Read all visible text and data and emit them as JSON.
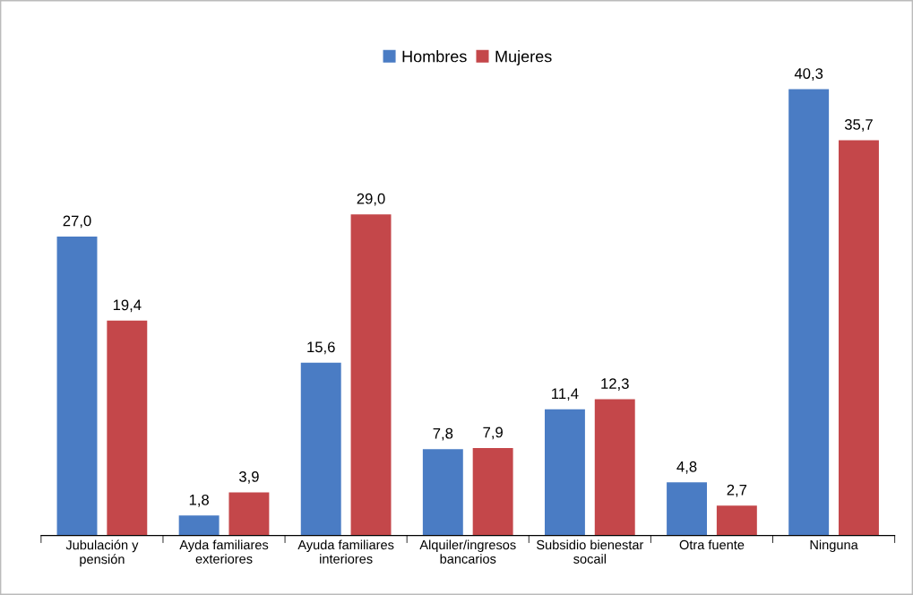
{
  "chart_data": {
    "type": "bar",
    "categories": [
      "Jubulación y\npensión",
      "Ayda familiares\nexteriores",
      "Ayuda familiares\ninteriores",
      "Alquiler/ingresos\nbancarios",
      "Subsidio bienestar\nsocail",
      "Otra fuente",
      "Ninguna"
    ],
    "series": [
      {
        "name": "Hombres",
        "color": "#4a7cc4",
        "values": [
          27.0,
          1.8,
          15.6,
          7.8,
          11.4,
          4.8,
          40.3
        ],
        "value_labels": [
          "27,0",
          "1,8",
          "15,6",
          "7,8",
          "11,4",
          "4,8",
          "40,3"
        ]
      },
      {
        "name": "Mujeres",
        "color": "#c4474a",
        "values": [
          19.4,
          3.9,
          29.0,
          7.9,
          12.3,
          2.7,
          35.7
        ],
        "value_labels": [
          "19,4",
          "3,9",
          "29,0",
          "7,9",
          "12,3",
          "2,7",
          "35,7"
        ]
      }
    ],
    "tick_labels": "x",
    "legend": "top",
    "grid": false
  }
}
